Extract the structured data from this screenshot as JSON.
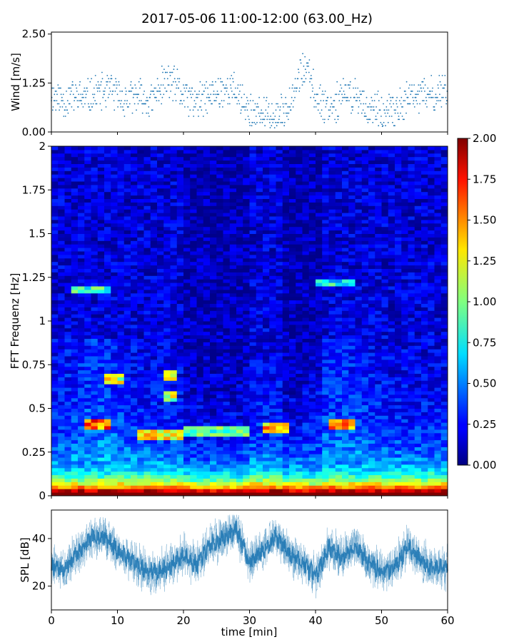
{
  "chart_data": {
    "title": "2017-05-06 11:00-12:00 (63.00_Hz)",
    "colors": {
      "series": "#1f77b4",
      "colormap": "jet"
    },
    "panels": [
      {
        "type": "scatter",
        "name": "wind",
        "ylabel": "Wind [m/s]",
        "xlim": [
          0,
          60
        ],
        "ylim": [
          0,
          2.55
        ],
        "yticks": [
          0.0,
          1.25,
          2.5
        ],
        "yticklabels": [
          "0.00",
          "1.25",
          "2.50"
        ],
        "wind_profile_knots": [
          [
            0,
            0.95
          ],
          [
            2,
            0.8
          ],
          [
            3,
            0.9
          ],
          [
            5,
            0.85
          ],
          [
            7,
            1.0
          ],
          [
            9,
            1.05
          ],
          [
            11,
            0.8
          ],
          [
            13,
            0.9
          ],
          [
            15,
            0.75
          ],
          [
            17,
            1.25
          ],
          [
            18,
            1.3
          ],
          [
            20,
            0.95
          ],
          [
            22,
            0.75
          ],
          [
            24,
            0.9
          ],
          [
            26,
            1.1
          ],
          [
            28,
            1.05
          ],
          [
            30,
            0.5
          ],
          [
            33,
            0.4
          ],
          [
            35,
            0.45
          ],
          [
            37,
            1.2
          ],
          [
            38,
            1.6
          ],
          [
            39,
            1.45
          ],
          [
            40,
            0.9
          ],
          [
            42,
            0.65
          ],
          [
            44,
            0.9
          ],
          [
            46,
            0.95
          ],
          [
            48,
            0.6
          ],
          [
            50,
            0.45
          ],
          [
            52,
            0.5
          ],
          [
            54,
            0.85
          ],
          [
            56,
            0.95
          ],
          [
            58,
            0.9
          ],
          [
            60,
            1.25
          ]
        ]
      },
      {
        "type": "heatmap",
        "name": "spectrogram",
        "ylabel": "FFT Frequenz [Hz]",
        "xlim": [
          0,
          60
        ],
        "ylim": [
          0,
          2
        ],
        "yticks": [
          0,
          0.25,
          0.5,
          0.75,
          1,
          1.25,
          1.5,
          1.75,
          2
        ],
        "yticklabels": [
          "0",
          "0.25",
          "0.5",
          "0.75",
          "1",
          "1.25",
          "1.5",
          "1.75",
          "2"
        ],
        "colorbar": {
          "range": [
            0,
            2
          ],
          "ticks": [
            "0.00",
            "0.25",
            "0.50",
            "0.75",
            "1.00",
            "1.25",
            "1.50",
            "1.75",
            "2.00"
          ]
        }
      },
      {
        "type": "line",
        "name": "spl",
        "ylabel": "SPL [dB]",
        "xlabel": "time [min]",
        "xlim": [
          0,
          60
        ],
        "ylim": [
          10,
          52
        ],
        "yticks": [
          20,
          40
        ],
        "xticks": [
          0,
          10,
          20,
          30,
          40,
          50,
          60
        ],
        "spl_profile_knots": [
          [
            0,
            28
          ],
          [
            2,
            27
          ],
          [
            4,
            34
          ],
          [
            6,
            40
          ],
          [
            8,
            41
          ],
          [
            10,
            35
          ],
          [
            12,
            31
          ],
          [
            14,
            27
          ],
          [
            16,
            26
          ],
          [
            18,
            28
          ],
          [
            20,
            33
          ],
          [
            22,
            29
          ],
          [
            24,
            37
          ],
          [
            26,
            40
          ],
          [
            28,
            44
          ],
          [
            30,
            30
          ],
          [
            32,
            35
          ],
          [
            34,
            41
          ],
          [
            36,
            34
          ],
          [
            38,
            30
          ],
          [
            40,
            24
          ],
          [
            42,
            36
          ],
          [
            44,
            32
          ],
          [
            46,
            37
          ],
          [
            48,
            30
          ],
          [
            50,
            26
          ],
          [
            52,
            28
          ],
          [
            54,
            37
          ],
          [
            56,
            31
          ],
          [
            58,
            27
          ],
          [
            60,
            28
          ]
        ]
      }
    ]
  }
}
